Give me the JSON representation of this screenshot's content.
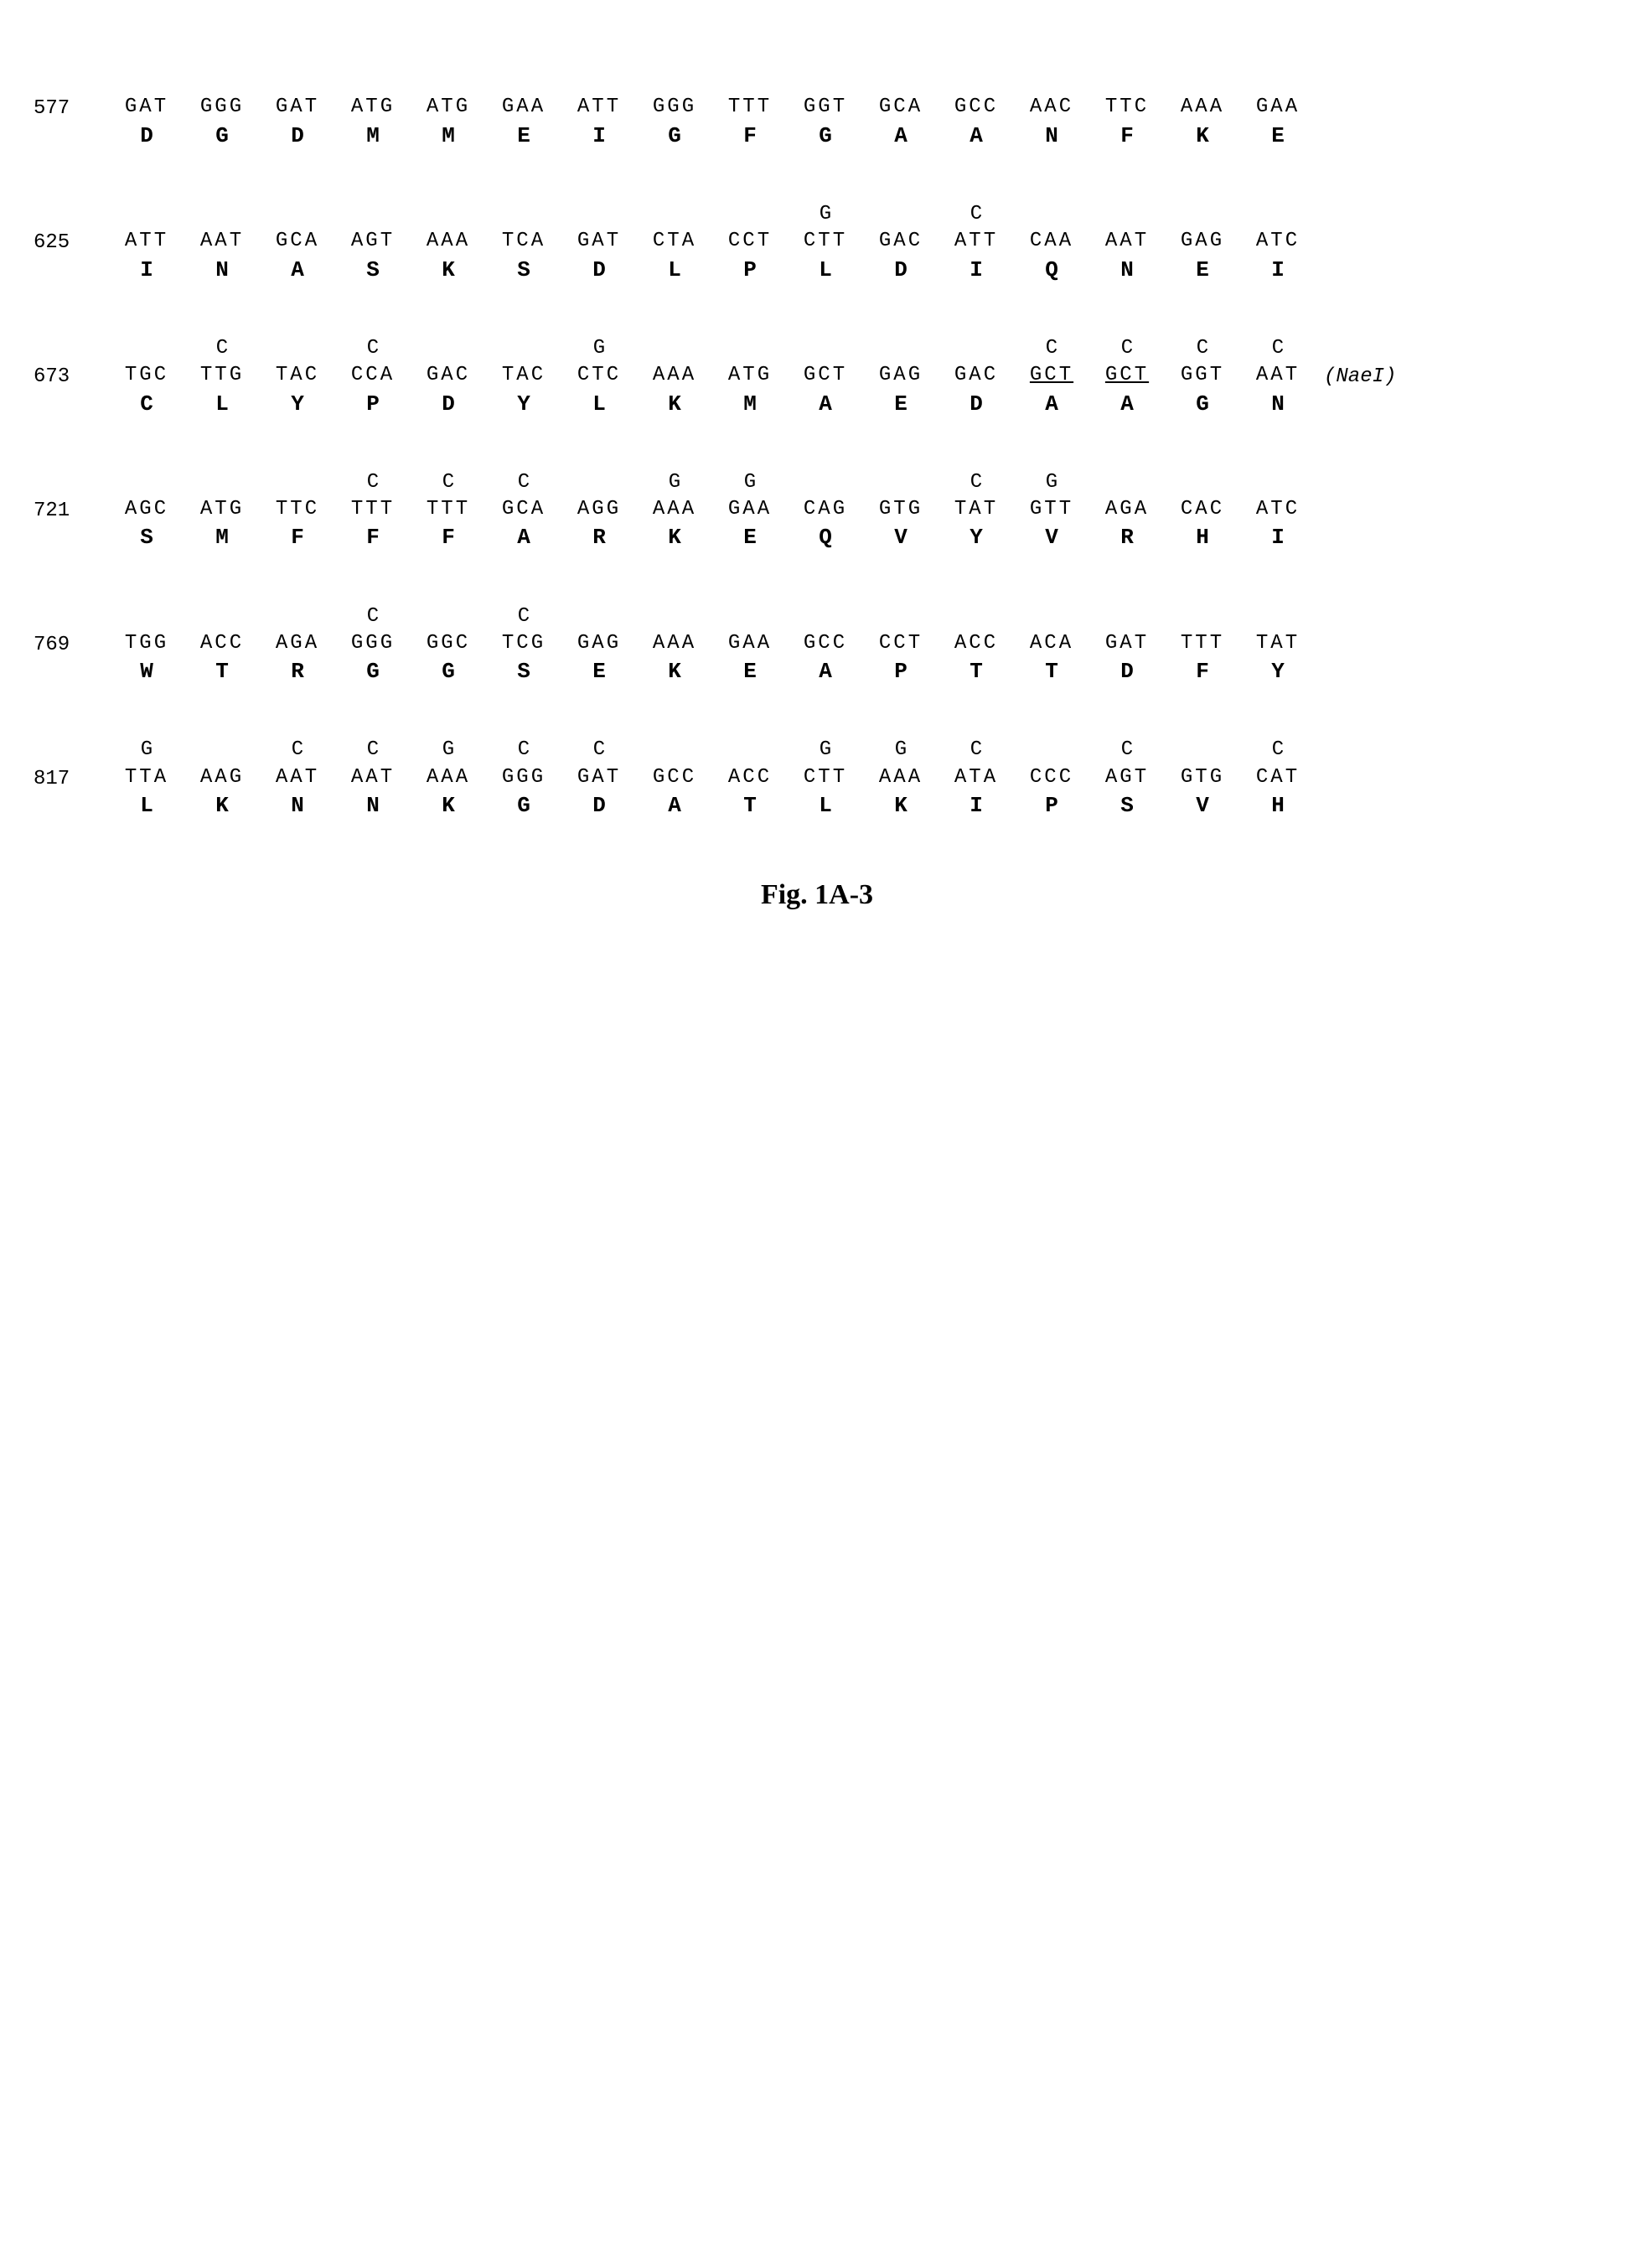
{
  "figure_label": "Fig. 1A-3",
  "font": {
    "mono": "Courier New",
    "serif": "Times New Roman"
  },
  "colors": {
    "text": "#000000",
    "background": "#ffffff"
  },
  "rows": [
    {
      "pos": "577",
      "note": "",
      "codons": [
        {
          "v": "",
          "c": "GAT",
          "a": "D"
        },
        {
          "v": "",
          "c": "GGG",
          "a": "G"
        },
        {
          "v": "",
          "c": "GAT",
          "a": "D"
        },
        {
          "v": "",
          "c": "ATG",
          "a": "M"
        },
        {
          "v": "",
          "c": "ATG",
          "a": "M"
        },
        {
          "v": "",
          "c": "GAA",
          "a": "E"
        },
        {
          "v": "",
          "c": "ATT",
          "a": "I"
        },
        {
          "v": "",
          "c": "GGG",
          "a": "G"
        },
        {
          "v": "",
          "c": "TTT",
          "a": "F"
        },
        {
          "v": "",
          "c": "GGT",
          "a": "G"
        },
        {
          "v": "",
          "c": "GCA",
          "a": "A"
        },
        {
          "v": "",
          "c": "GCC",
          "a": "A"
        },
        {
          "v": "",
          "c": "AAC",
          "a": "N"
        },
        {
          "v": "",
          "c": "TTC",
          "a": "F"
        },
        {
          "v": "",
          "c": "AAA",
          "a": "K"
        },
        {
          "v": "",
          "c": "GAA",
          "a": "E"
        }
      ]
    },
    {
      "pos": "625",
      "note": "",
      "codons": [
        {
          "v": "",
          "c": "ATT",
          "a": "I"
        },
        {
          "v": "",
          "c": "AAT",
          "a": "N"
        },
        {
          "v": "",
          "c": "GCA",
          "a": "A"
        },
        {
          "v": "",
          "c": "AGT",
          "a": "S"
        },
        {
          "v": "",
          "c": "AAA",
          "a": "K"
        },
        {
          "v": "",
          "c": "TCA",
          "a": "S"
        },
        {
          "v": "",
          "c": "GAT",
          "a": "D"
        },
        {
          "v": "",
          "c": "CTA",
          "a": "L"
        },
        {
          "v": "",
          "c": "CCT",
          "a": "P"
        },
        {
          "v": "G",
          "c": "CTT",
          "a": "L"
        },
        {
          "v": "",
          "c": "GAC",
          "a": "D"
        },
        {
          "v": "C",
          "c": "ATT",
          "a": "I"
        },
        {
          "v": "",
          "c": "CAA",
          "a": "Q"
        },
        {
          "v": "",
          "c": "AAT",
          "a": "N"
        },
        {
          "v": "",
          "c": "GAG",
          "a": "E"
        },
        {
          "v": "",
          "c": "ATC",
          "a": "I"
        }
      ]
    },
    {
      "pos": "673",
      "note": "(NaeI)",
      "codons": [
        {
          "v": "",
          "c": "TGC",
          "a": "C"
        },
        {
          "v": "C",
          "c": "TTG",
          "a": "L"
        },
        {
          "v": "",
          "c": "TAC",
          "a": "Y"
        },
        {
          "v": "C",
          "c": "CCA",
          "a": "P"
        },
        {
          "v": "",
          "c": "GAC",
          "a": "D"
        },
        {
          "v": "",
          "c": "TAC",
          "a": "Y"
        },
        {
          "v": "G",
          "c": "CTC",
          "a": "L"
        },
        {
          "v": "",
          "c": "AAA",
          "a": "K"
        },
        {
          "v": "",
          "c": "ATG",
          "a": "M"
        },
        {
          "v": "",
          "c": "GCT",
          "a": "A"
        },
        {
          "v": "",
          "c": "GAG",
          "a": "E"
        },
        {
          "v": "",
          "c": "GAC",
          "a": "D"
        },
        {
          "v": "C",
          "c": "GCT",
          "a": "A",
          "u": true
        },
        {
          "v": "C",
          "c": "GCT",
          "a": "A",
          "u": true
        },
        {
          "v": "C",
          "c": "GGT",
          "a": "G"
        },
        {
          "v": "C",
          "c": "AAT",
          "a": "N"
        }
      ]
    },
    {
      "pos": "721",
      "note": "",
      "codons": [
        {
          "v": "",
          "c": "AGC",
          "a": "S"
        },
        {
          "v": "",
          "c": "ATG",
          "a": "M"
        },
        {
          "v": "",
          "c": "TTC",
          "a": "F"
        },
        {
          "v": "C",
          "c": "TTT",
          "a": "F"
        },
        {
          "v": "C",
          "c": "TTT",
          "a": "F"
        },
        {
          "v": "C",
          "c": "GCA",
          "a": "A"
        },
        {
          "v": "",
          "c": "AGG",
          "a": "R"
        },
        {
          "v": "G",
          "c": "AAA",
          "a": "K"
        },
        {
          "v": "G",
          "c": "GAA",
          "a": "E"
        },
        {
          "v": "",
          "c": "CAG",
          "a": "Q"
        },
        {
          "v": "",
          "c": "GTG",
          "a": "V"
        },
        {
          "v": "C",
          "c": "TAT",
          "a": "Y"
        },
        {
          "v": "G",
          "c": "GTT",
          "a": "V"
        },
        {
          "v": "",
          "c": "AGA",
          "a": "R"
        },
        {
          "v": "",
          "c": "CAC",
          "a": "H"
        },
        {
          "v": "",
          "c": "ATC",
          "a": "I"
        }
      ]
    },
    {
      "pos": "769",
      "note": "",
      "codons": [
        {
          "v": "",
          "c": "TGG",
          "a": "W"
        },
        {
          "v": "",
          "c": "ACC",
          "a": "T"
        },
        {
          "v": "",
          "c": "AGA",
          "a": "R"
        },
        {
          "v": "C",
          "c": "GGG",
          "a": "G"
        },
        {
          "v": "",
          "c": "GGC",
          "a": "G"
        },
        {
          "v": "C",
          "c": "TCG",
          "a": "S"
        },
        {
          "v": "",
          "c": "GAG",
          "a": "E"
        },
        {
          "v": "",
          "c": "AAA",
          "a": "K"
        },
        {
          "v": "",
          "c": "GAA",
          "a": "E"
        },
        {
          "v": "",
          "c": "GCC",
          "a": "A"
        },
        {
          "v": "",
          "c": "CCT",
          "a": "P"
        },
        {
          "v": "",
          "c": "ACC",
          "a": "T"
        },
        {
          "v": "",
          "c": "ACA",
          "a": "T"
        },
        {
          "v": "",
          "c": "GAT",
          "a": "D"
        },
        {
          "v": "",
          "c": "TTT",
          "a": "F"
        },
        {
          "v": "",
          "c": "TAT",
          "a": "Y"
        }
      ]
    },
    {
      "pos": "817",
      "note": "",
      "codons": [
        {
          "v": "G",
          "c": "TTA",
          "a": "L"
        },
        {
          "v": "",
          "c": "AAG",
          "a": "K"
        },
        {
          "v": "C",
          "c": "AAT",
          "a": "N"
        },
        {
          "v": "C",
          "c": "AAT",
          "a": "N"
        },
        {
          "v": "G",
          "c": "AAA",
          "a": "K"
        },
        {
          "v": "C",
          "c": "GGG",
          "a": "G"
        },
        {
          "v": "C",
          "c": "GAT",
          "a": "D"
        },
        {
          "v": "",
          "c": "GCC",
          "a": "A"
        },
        {
          "v": "",
          "c": "ACC",
          "a": "T"
        },
        {
          "v": "G",
          "c": "CTT",
          "a": "L"
        },
        {
          "v": "G",
          "c": "AAA",
          "a": "K"
        },
        {
          "v": "C",
          "c": "ATA",
          "a": "I"
        },
        {
          "v": "",
          "c": "CCC",
          "a": "P"
        },
        {
          "v": "C",
          "c": "AGT",
          "a": "S"
        },
        {
          "v": "",
          "c": "GTG",
          "a": "V"
        },
        {
          "v": "C",
          "c": "CAT",
          "a": "H"
        }
      ]
    }
  ]
}
